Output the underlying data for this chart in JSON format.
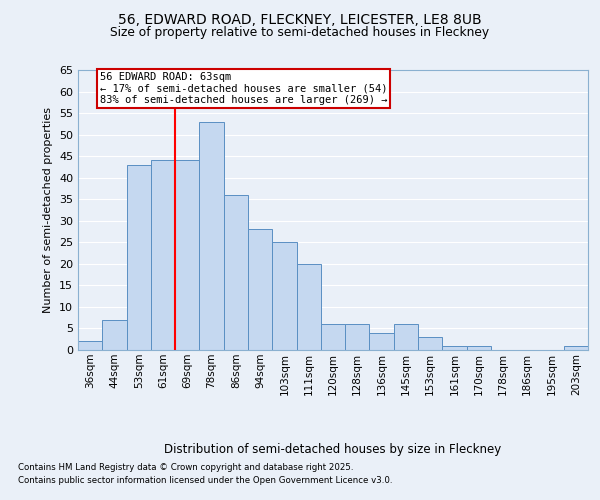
{
  "title1": "56, EDWARD ROAD, FLECKNEY, LEICESTER, LE8 8UB",
  "title2": "Size of property relative to semi-detached houses in Fleckney",
  "xlabel": "Distribution of semi-detached houses by size in Fleckney",
  "ylabel": "Number of semi-detached properties",
  "categories": [
    "36sqm",
    "44sqm",
    "53sqm",
    "61sqm",
    "69sqm",
    "78sqm",
    "86sqm",
    "94sqm",
    "103sqm",
    "111sqm",
    "120sqm",
    "128sqm",
    "136sqm",
    "145sqm",
    "153sqm",
    "161sqm",
    "170sqm",
    "178sqm",
    "186sqm",
    "195sqm",
    "203sqm"
  ],
  "values": [
    2,
    7,
    43,
    44,
    44,
    53,
    36,
    28,
    25,
    20,
    6,
    6,
    4,
    6,
    3,
    1,
    1,
    0,
    0,
    0,
    1
  ],
  "bar_color": "#c5d8f0",
  "bar_edge_color": "#5a8fc3",
  "red_line_index": 3.5,
  "red_line_label": "56 EDWARD ROAD: 63sqm",
  "annotation_line1": "← 17% of semi-detached houses are smaller (54)",
  "annotation_line2": "83% of semi-detached houses are larger (269) →",
  "ylim": [
    0,
    65
  ],
  "yticks": [
    0,
    5,
    10,
    15,
    20,
    25,
    30,
    35,
    40,
    45,
    50,
    55,
    60,
    65
  ],
  "bg_color": "#eaf0f8",
  "footnote1": "Contains HM Land Registry data © Crown copyright and database right 2025.",
  "footnote2": "Contains public sector information licensed under the Open Government Licence v3.0.",
  "grid_color": "#ffffff",
  "ann_box_edge_color": "#cc0000"
}
